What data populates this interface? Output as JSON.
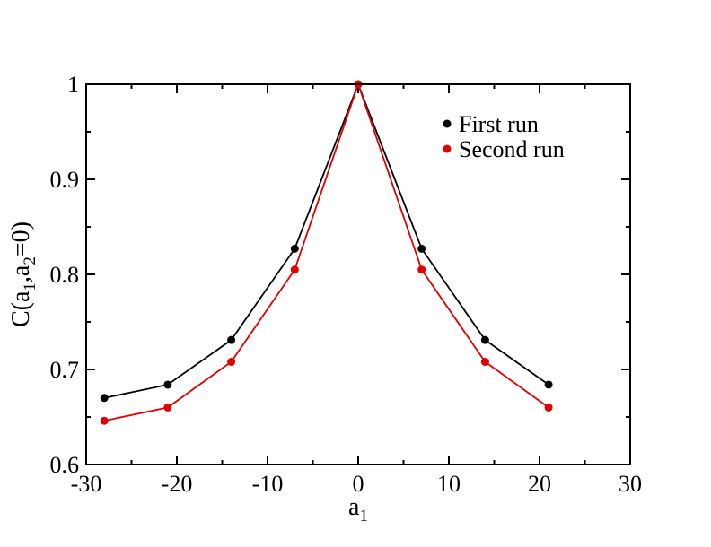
{
  "chart_data": {
    "type": "line",
    "title": "",
    "xlabel": {
      "main": "a",
      "sub": "1"
    },
    "ylabel": {
      "pre": "C(a",
      "sub1": "1",
      "mid": ",a",
      "sub2": "2",
      "post": "=0)"
    },
    "xlim": [
      -30,
      30
    ],
    "ylim": [
      0.6,
      1.0
    ],
    "x_major_ticks": [
      -30,
      -20,
      -10,
      0,
      10,
      20,
      30
    ],
    "x_tick_labels": [
      "-30",
      "-20",
      "-10",
      "0",
      "10",
      "20",
      "30"
    ],
    "y_major_ticks": [
      0.6,
      0.7,
      0.8,
      0.9,
      1.0
    ],
    "y_tick_labels": [
      "0.6",
      "0.7",
      "0.8",
      "0.9",
      "1"
    ],
    "grid": false,
    "legend_position": "top-right",
    "series": [
      {
        "name": "First run",
        "color": "#000000",
        "x": [
          -28,
          -21,
          -14,
          -7,
          0,
          7,
          14,
          21
        ],
        "y": [
          0.67,
          0.684,
          0.731,
          0.827,
          1.0,
          0.827,
          0.731,
          0.684
        ]
      },
      {
        "name": "Second run",
        "color": "#e00000",
        "x": [
          -28,
          -21,
          -14,
          -7,
          0,
          7,
          14,
          21
        ],
        "y": [
          0.646,
          0.66,
          0.708,
          0.805,
          1.0,
          0.805,
          0.708,
          0.66
        ]
      }
    ]
  }
}
